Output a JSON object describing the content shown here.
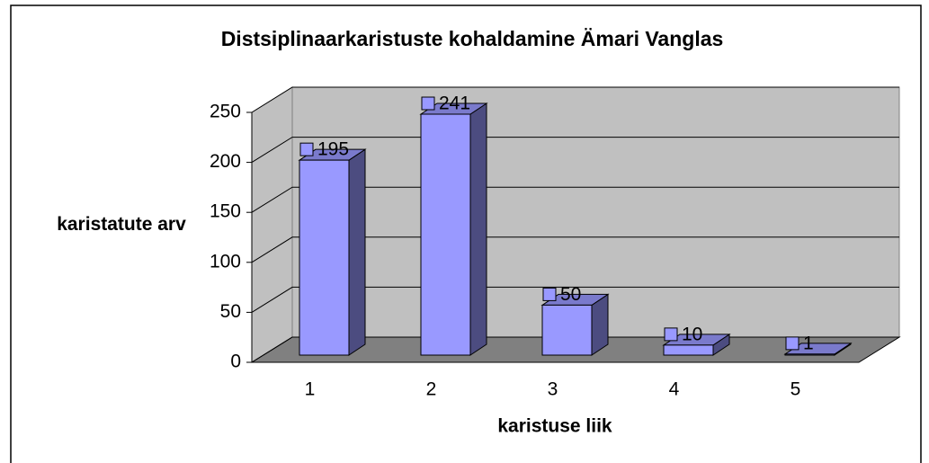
{
  "chart_data": {
    "type": "bar3d",
    "title": "Distsiplinaarkaristuste kohaldamine Ämari Vanglas",
    "y_label": "karistatute arv",
    "x_label": "karistuse liik",
    "categories": [
      "1",
      "2",
      "3",
      "4",
      "5"
    ],
    "values": [
      195,
      241,
      50,
      10,
      1
    ],
    "color": "#9999ff",
    "ylim": [
      0,
      250
    ],
    "yticks": [
      0,
      50,
      100,
      150,
      200,
      250
    ],
    "grid": true
  }
}
